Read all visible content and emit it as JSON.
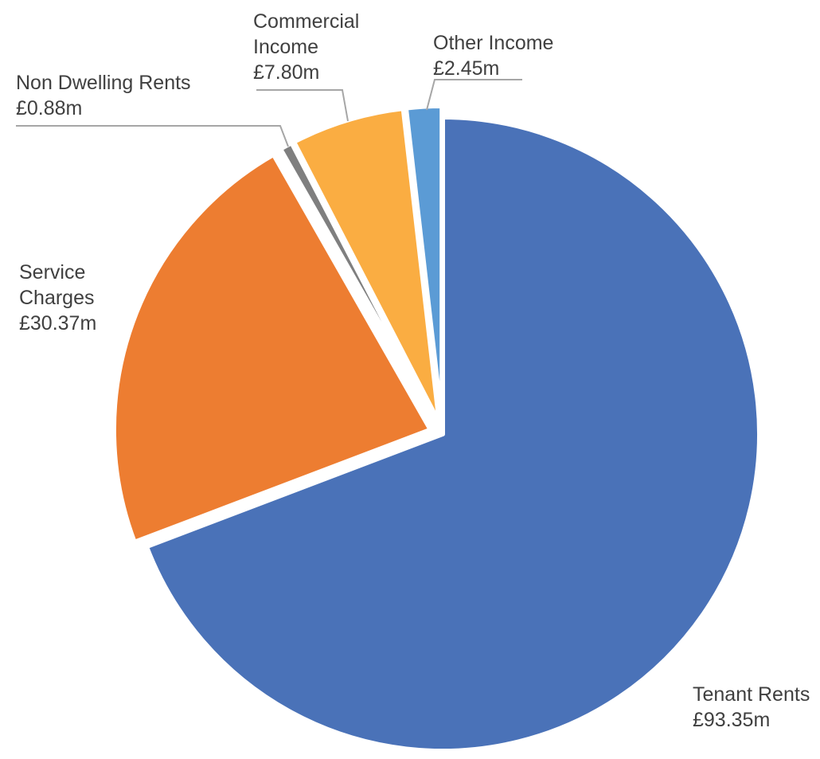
{
  "chart_data": {
    "type": "pie",
    "title": "",
    "unit_prefix": "£",
    "unit_suffix": "m",
    "slices": [
      {
        "name": "Tenant Rents",
        "label_lines": [
          "Tenant Rents"
        ],
        "value": 93.35,
        "value_label": "£93.35m",
        "color": "#4A72B8"
      },
      {
        "name": "Service Charges",
        "label_lines": [
          "Service",
          "Charges"
        ],
        "value": 30.37,
        "value_label": "£30.37m",
        "color": "#ED7D31"
      },
      {
        "name": "Non Dwelling Rents",
        "label_lines": [
          "Non Dwelling Rents"
        ],
        "value": 0.88,
        "value_label": "£0.88m",
        "color": "#7F7F7F"
      },
      {
        "name": "Commercial Income",
        "label_lines": [
          "Commercial",
          "Income"
        ],
        "value": 7.8,
        "value_label": "£7.80m",
        "color": "#FAAD42"
      },
      {
        "name": "Other Income",
        "label_lines": [
          "Other Income"
        ],
        "value": 2.45,
        "value_label": "£2.45m",
        "color": "#5B9BD5"
      }
    ]
  }
}
